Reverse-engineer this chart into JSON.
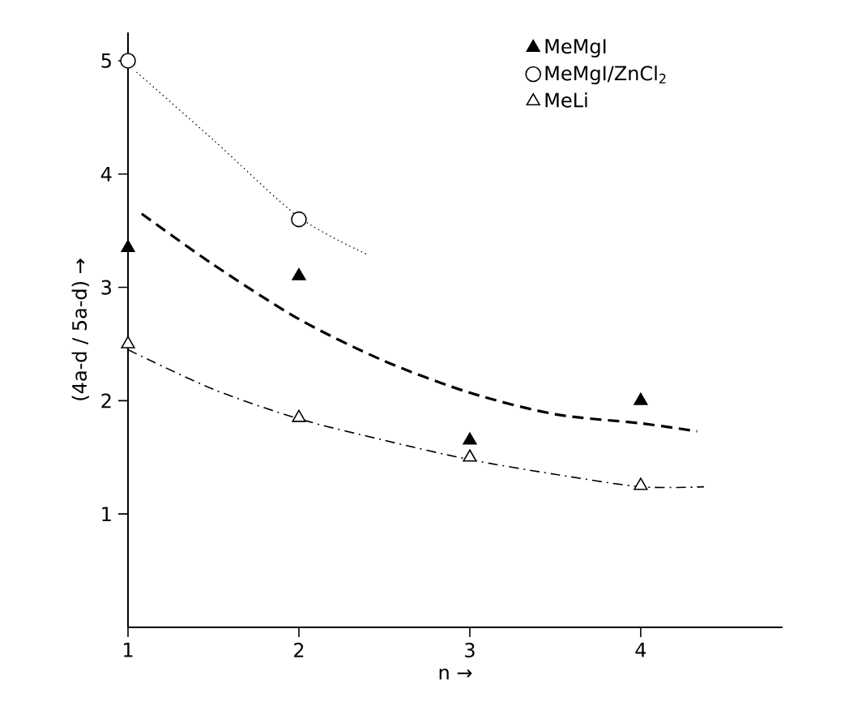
{
  "chart_data": {
    "type": "scatter",
    "xlabel": "n →",
    "ylabel": "(4a-d / 5a-d) →",
    "xlim": [
      1,
      4.83
    ],
    "ylim": [
      0,
      5.25
    ],
    "xticks": [
      1,
      2,
      3,
      4
    ],
    "yticks": [
      1,
      2,
      3,
      4,
      5
    ],
    "grid": false,
    "legend": "top right",
    "series": [
      {
        "name": "MeMgI",
        "marker": "triangle",
        "color": "#000000",
        "x": [
          1,
          2,
          3,
          4
        ],
        "values": [
          3.35,
          3.1,
          1.65,
          2.0
        ]
      },
      {
        "name": "MeMgI/ZnCl$_{2}$",
        "marker": "circle",
        "color": "#ffffff",
        "x": [
          1,
          2
        ],
        "values": [
          5.0,
          3.6
        ]
      },
      {
        "name": "MeLi",
        "marker": "triangle",
        "color": "#ffffff",
        "x": [
          1,
          2,
          3,
          4
        ],
        "values": [
          2.5,
          1.85,
          1.5,
          1.25
        ]
      },
      {
        "type": "line",
        "line_style": "dashed",
        "color": "#000000",
        "x": [
          1.08,
          1.5,
          2,
          2.5,
          3,
          3.5,
          4,
          4.33
        ],
        "values": [
          3.65,
          3.2,
          2.72,
          2.35,
          2.07,
          1.88,
          1.8,
          1.73
        ]
      },
      {
        "type": "line",
        "line_style": "dotted",
        "color": "#000000",
        "x": [
          1.05,
          1.5,
          2,
          2.4
        ],
        "values": [
          4.9,
          4.3,
          3.62,
          3.29
        ]
      },
      {
        "type": "line",
        "line_style": "dashdotted",
        "color": "#000000",
        "x": [
          1,
          1.5,
          2,
          2.5,
          3,
          3.5,
          4,
          4.37
        ],
        "values": [
          2.45,
          2.1,
          1.84,
          1.65,
          1.48,
          1.35,
          1.24,
          1.24
        ]
      }
    ]
  }
}
